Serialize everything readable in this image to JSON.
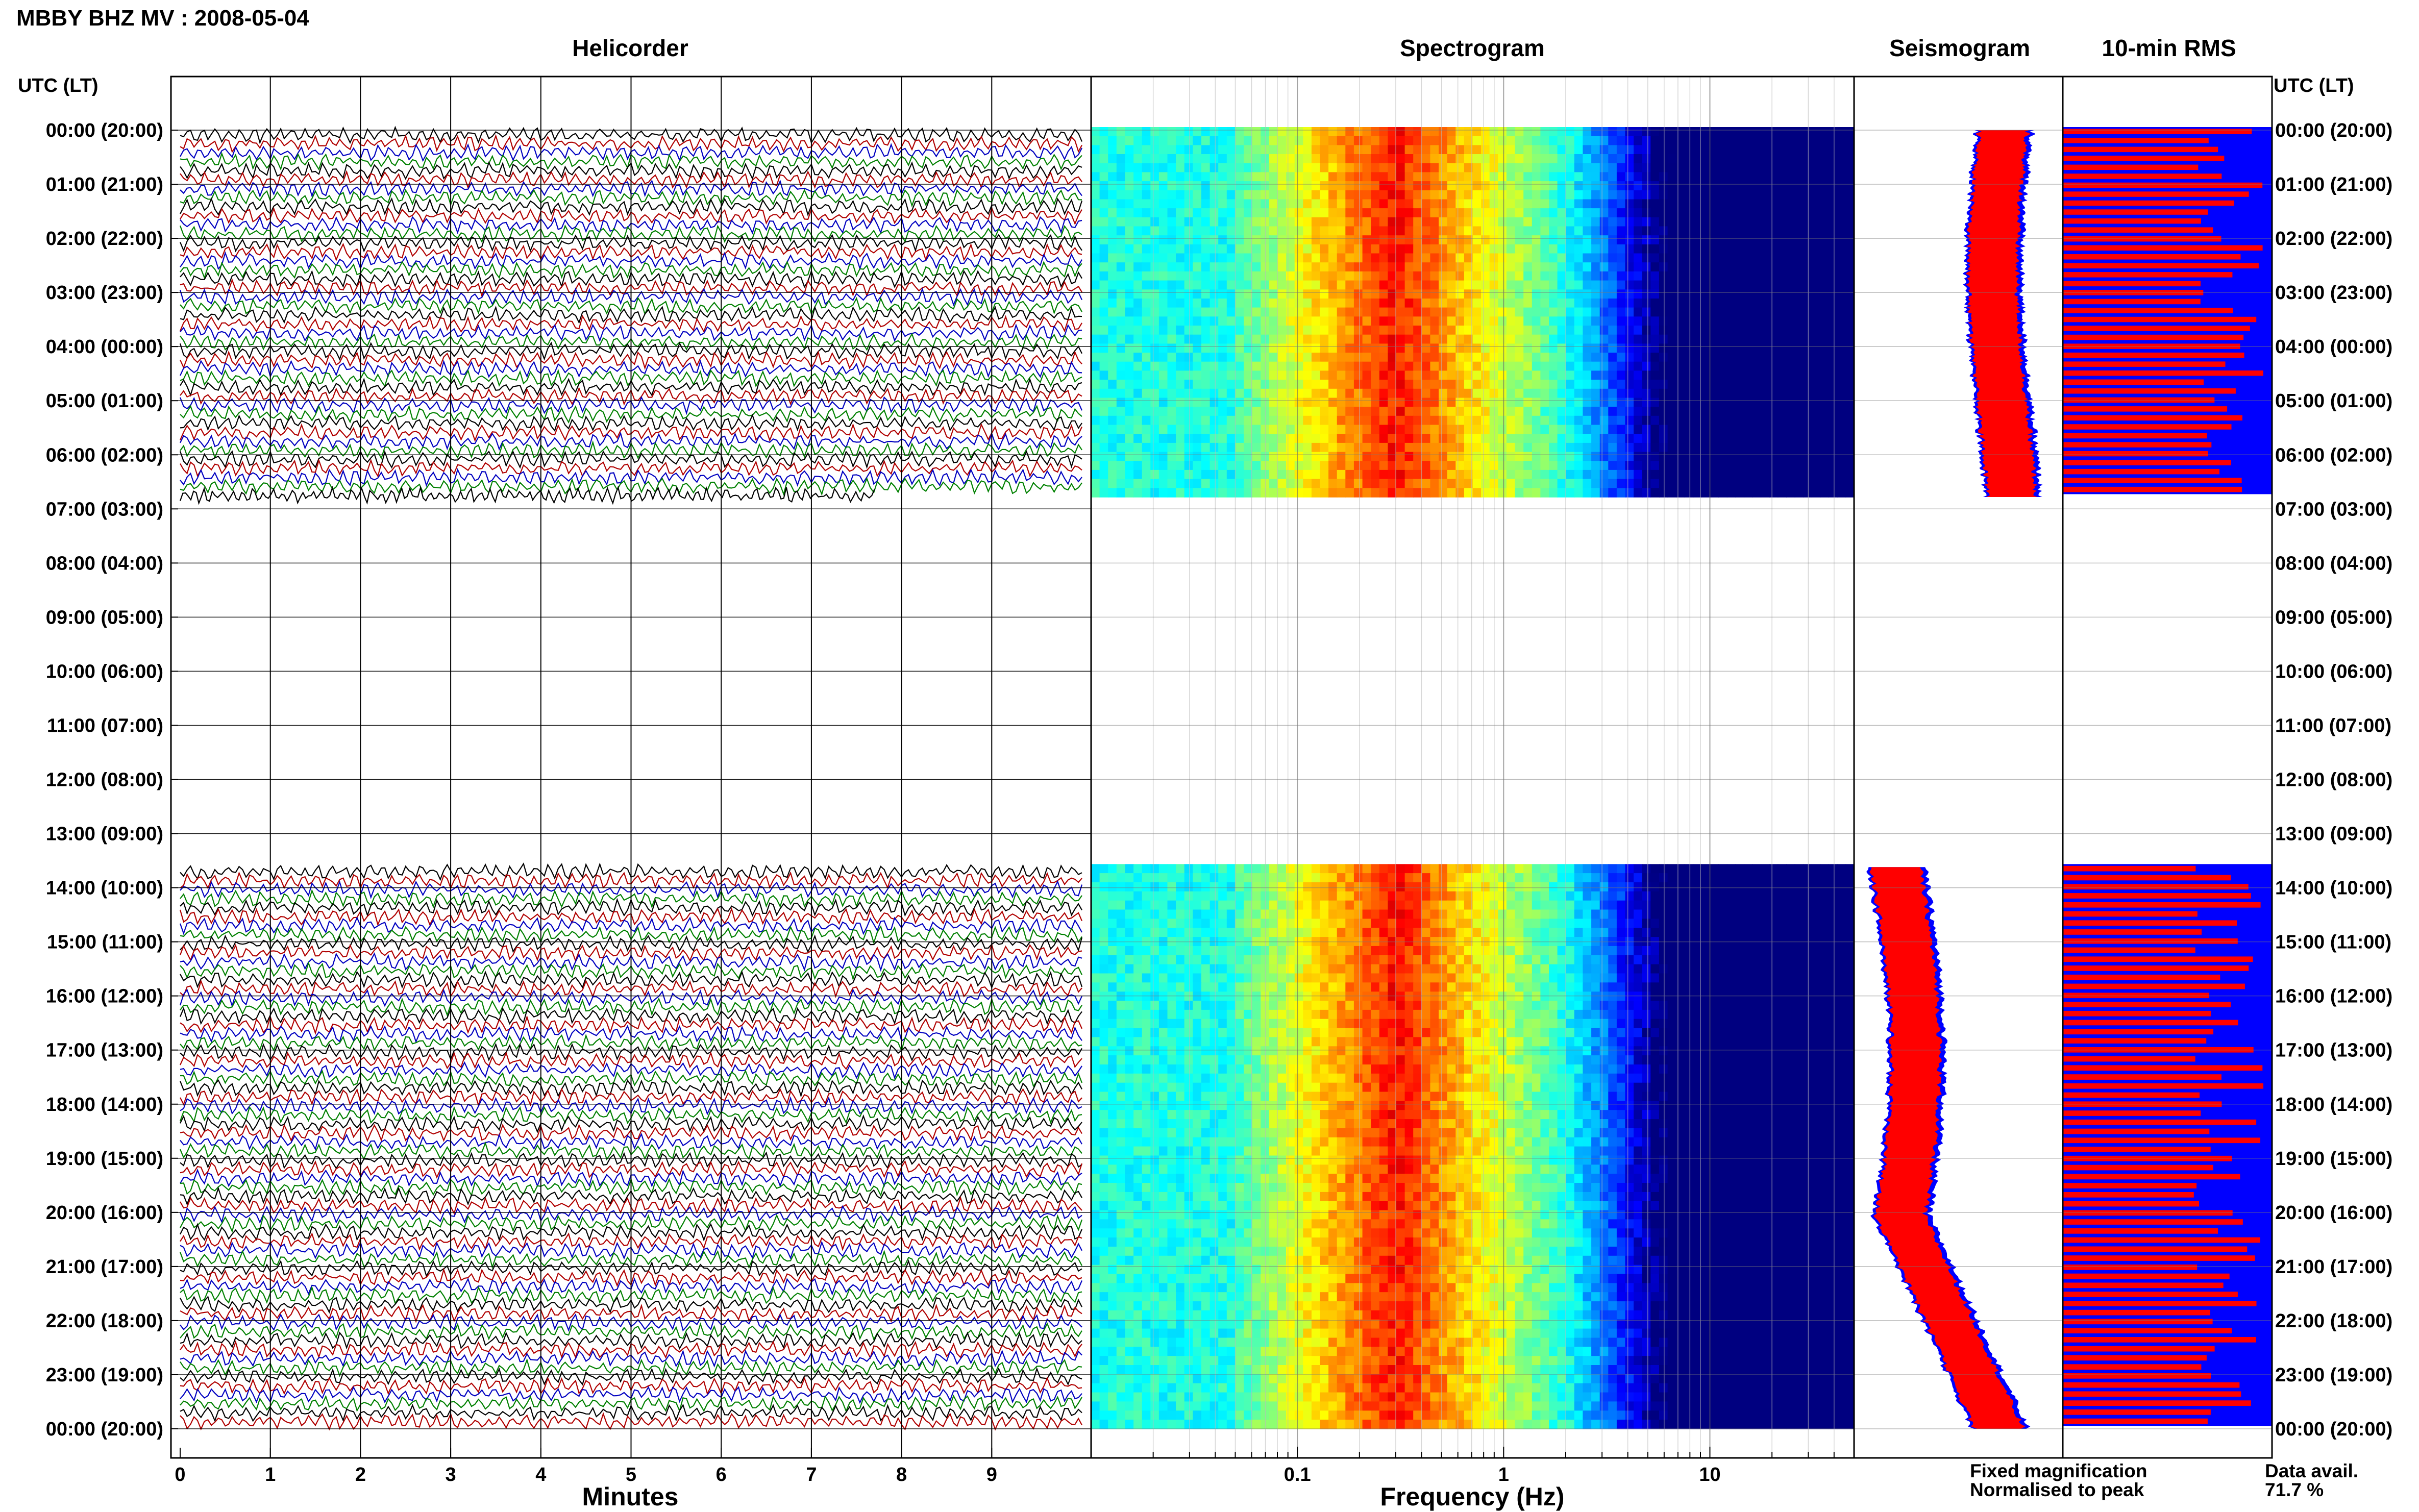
{
  "title": "MBBY BHZ MV : 2008-05-04",
  "panels": {
    "helicorder": "Helicorder",
    "spectrogram": "Spectrogram",
    "seismogram": "Seismogram",
    "rms": "10-min RMS"
  },
  "axes": {
    "y_label_left": "UTC (LT)",
    "y_label_right": "UTC (LT)",
    "helicorder_xlabel": "Minutes",
    "spectrogram_xlabel": "Frequency (Hz)"
  },
  "legend": {
    "fixed": "Fixed magnification",
    "normalised": "Normalised to peak",
    "fixed_color": "#0000ff",
    "normalised_color": "#ff0000"
  },
  "availability": {
    "label": "Data avail.",
    "value": "71.7 %"
  },
  "colors": {
    "trace_cycle": [
      "#000000",
      "#b00000",
      "#0000c0",
      "#008000"
    ],
    "spectrogram_low": "#000090",
    "spectrogram_high": "#d01000"
  },
  "chart_data": {
    "type": "heatmap",
    "title": "MBBY BHZ MV : 2008-05-04",
    "y_ticks": [
      "00:00 (20:00)",
      "01:00 (21:00)",
      "02:00 (22:00)",
      "03:00 (23:00)",
      "04:00 (00:00)",
      "05:00 (01:00)",
      "06:00 (02:00)",
      "07:00 (03:00)",
      "08:00 (04:00)",
      "09:00 (05:00)",
      "10:00 (06:00)",
      "11:00 (07:00)",
      "12:00 (08:00)",
      "13:00 (09:00)",
      "14:00 (10:00)",
      "15:00 (11:00)",
      "16:00 (12:00)",
      "17:00 (13:00)",
      "18:00 (14:00)",
      "19:00 (15:00)",
      "20:00 (16:00)",
      "21:00 (17:00)",
      "22:00 (18:00)",
      "23:00 (19:00)",
      "00:00 (20:00)"
    ],
    "data_segments_utc_hours": [
      [
        0.0,
        6.78
      ],
      [
        13.62,
        24.0
      ]
    ],
    "helicorder": {
      "xlabel": "Minutes",
      "x_ticks": [
        "0",
        "1",
        "2",
        "3",
        "4",
        "5",
        "6",
        "7",
        "8",
        "9"
      ],
      "xlim": [
        0,
        10
      ]
    },
    "spectrogram": {
      "xlabel": "Frequency (Hz)",
      "x_ticks": [
        "0.1",
        "1",
        "10"
      ],
      "xlim": [
        0.01,
        50
      ],
      "x_scale": "log",
      "peak_energy_hz": [
        0.2,
        0.45
      ]
    },
    "seismogram": {
      "series": [
        {
          "name": "Fixed magnification"
        },
        {
          "name": "Normalised to peak"
        }
      ]
    },
    "rms": {
      "series": [
        {
          "name": "Fixed magnification"
        },
        {
          "name": "Normalised to peak"
        }
      ]
    },
    "data_availability_percent": 71.7
  }
}
